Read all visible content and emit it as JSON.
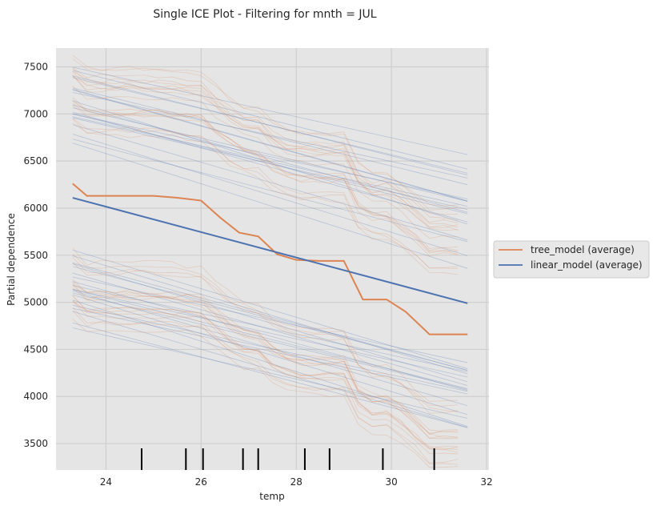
{
  "chart_data": {
    "type": "line",
    "title": "Single ICE Plot - Filtering for mnth = JUL",
    "xlabel": "temp",
    "ylabel": "Partial dependence",
    "xlim": [
      22.95,
      32.05
    ],
    "ylim": [
      3220,
      7700
    ],
    "xticks": [
      24,
      26,
      28,
      30,
      32
    ],
    "yticks": [
      3500,
      4000,
      4500,
      5000,
      5500,
      6000,
      6500,
      7000,
      7500
    ],
    "grid": true,
    "legend_position": "outside-right",
    "series": [
      {
        "name": "tree_model (average)",
        "color": "#dd8452",
        "x": [
          23.3,
          23.6,
          24.0,
          25.0,
          25.5,
          26.0,
          26.4,
          26.8,
          27.2,
          27.6,
          28.0,
          28.5,
          29.0,
          29.4,
          29.9,
          30.3,
          30.8,
          31.6
        ],
        "y": [
          6260,
          6130,
          6130,
          6130,
          6110,
          6080,
          5900,
          5740,
          5700,
          5510,
          5450,
          5440,
          5440,
          5030,
          5030,
          4900,
          4660,
          4660
        ]
      },
      {
        "name": "linear_model (average)",
        "color": "#4c72b0",
        "x": [
          23.3,
          31.6
        ],
        "y": [
          6110,
          4990
        ]
      }
    ],
    "rug_x": [
      24.75,
      25.68,
      26.04,
      26.88,
      27.2,
      28.18,
      28.7,
      29.82,
      30.9
    ]
  }
}
